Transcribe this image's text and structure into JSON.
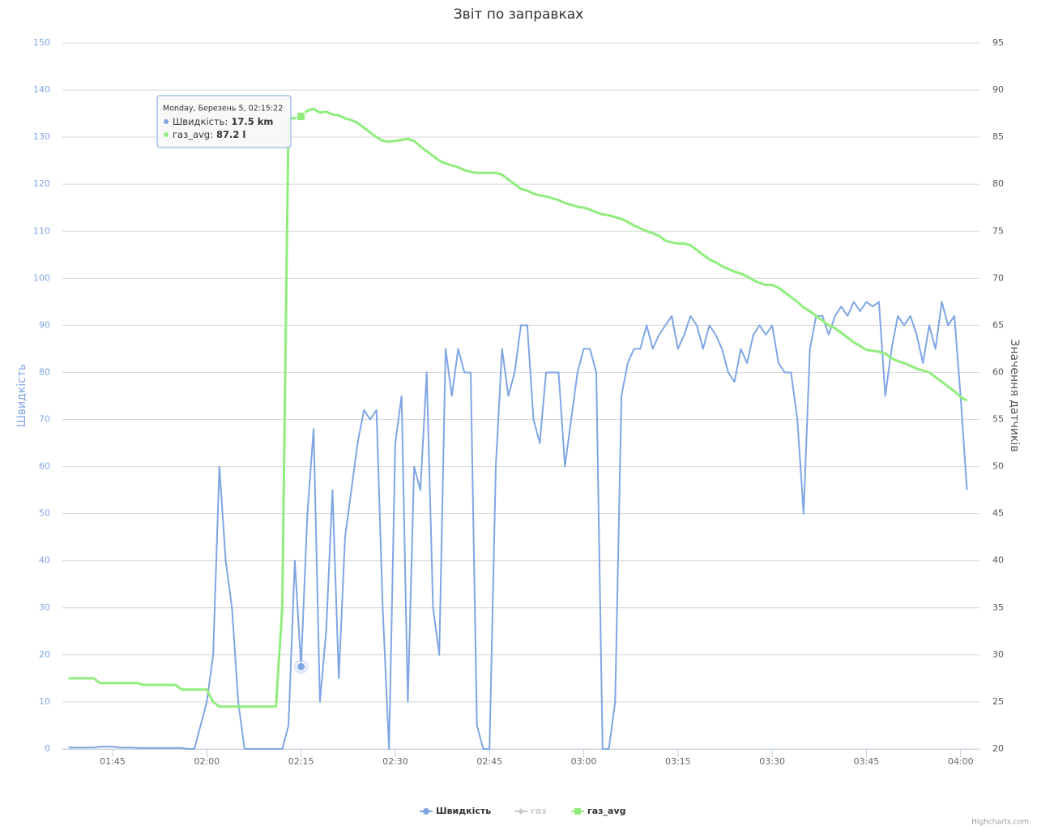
{
  "chart_data": {
    "type": "line",
    "title": "Звіт по заправках",
    "y_axis_title": "Швидкість",
    "y2_axis_title": "Значення датчиків",
    "x": [
      "01:38",
      "01:39",
      "01:40",
      "01:41",
      "01:42",
      "01:43",
      "01:44",
      "01:45",
      "01:46",
      "01:47",
      "01:48",
      "01:49",
      "01:50",
      "01:51",
      "01:52",
      "01:53",
      "01:54",
      "01:55",
      "01:56",
      "01:57",
      "01:58",
      "01:59",
      "02:00",
      "02:01",
      "02:02",
      "02:03",
      "02:04",
      "02:05",
      "02:06",
      "02:07",
      "02:08",
      "02:09",
      "02:10",
      "02:11",
      "02:12",
      "02:13",
      "02:14",
      "02:15",
      "02:16",
      "02:17",
      "02:18",
      "02:19",
      "02:20",
      "02:21",
      "02:22",
      "02:23",
      "02:24",
      "02:25",
      "02:26",
      "02:27",
      "02:28",
      "02:29",
      "02:30",
      "02:31",
      "02:32",
      "02:33",
      "02:34",
      "02:35",
      "02:36",
      "02:37",
      "02:38",
      "02:39",
      "02:40",
      "02:41",
      "02:42",
      "02:43",
      "02:44",
      "02:45",
      "02:46",
      "02:47",
      "02:48",
      "02:49",
      "02:50",
      "02:51",
      "02:52",
      "02:53",
      "02:54",
      "02:55",
      "02:56",
      "02:57",
      "02:58",
      "02:59",
      "03:00",
      "03:01",
      "03:02",
      "03:03",
      "03:04",
      "03:05",
      "03:06",
      "03:07",
      "03:08",
      "03:09",
      "03:10",
      "03:11",
      "03:12",
      "03:13",
      "03:14",
      "03:15",
      "03:16",
      "03:17",
      "03:18",
      "03:19",
      "03:20",
      "03:21",
      "03:22",
      "03:23",
      "03:24",
      "03:25",
      "03:26",
      "03:27",
      "03:28",
      "03:29",
      "03:30",
      "03:31",
      "03:32",
      "03:33",
      "03:34",
      "03:35",
      "03:36",
      "03:37",
      "03:38",
      "03:39",
      "03:40",
      "03:41",
      "03:42",
      "03:43",
      "03:44",
      "03:45",
      "03:46",
      "03:47",
      "03:48",
      "03:49",
      "03:50",
      "03:51",
      "03:52",
      "03:53",
      "03:54",
      "03:55",
      "03:56",
      "03:57",
      "03:58",
      "03:59",
      "04:00",
      "04:01"
    ],
    "xlim": [
      "01:37",
      "04:03"
    ],
    "xticks": [
      "01:45",
      "02:00",
      "02:15",
      "02:30",
      "02:45",
      "03:00",
      "03:15",
      "03:30",
      "03:45",
      "04:00"
    ],
    "ylim": [
      0,
      150
    ],
    "yticks": [
      0,
      10,
      20,
      30,
      40,
      50,
      60,
      70,
      80,
      90,
      100,
      110,
      120,
      130,
      140,
      150
    ],
    "y2lim": [
      20,
      95
    ],
    "y2ticks": [
      20,
      25,
      30,
      35,
      40,
      45,
      50,
      55,
      60,
      65,
      70,
      75,
      80,
      85,
      90,
      95
    ],
    "grid": true,
    "series": [
      {
        "name": "Швидкість",
        "color": "#7fa6e3",
        "marker": "circle",
        "values": [
          0.3,
          0.3,
          0.3,
          0.3,
          0.3,
          0.5,
          0.5,
          0.5,
          0.3,
          0.3,
          0.3,
          0.2,
          0.2,
          0.2,
          0.2,
          0.2,
          0.2,
          0.2,
          0.2,
          0,
          0,
          5,
          10,
          20,
          60,
          40,
          30,
          10,
          0,
          0,
          0,
          0,
          0,
          0,
          0,
          5,
          40,
          17.5,
          50,
          68,
          10,
          25,
          55,
          15,
          45,
          55,
          65,
          72,
          70,
          72,
          30,
          0,
          65,
          75,
          10,
          60,
          55,
          80,
          30,
          20,
          85,
          75,
          85,
          80,
          80,
          5,
          0,
          0,
          60,
          85,
          75,
          80,
          90,
          90,
          70,
          65,
          80,
          80,
          80,
          60,
          70,
          80,
          85,
          85,
          80,
          0,
          0,
          10,
          75,
          82,
          85,
          85,
          90,
          85,
          88,
          90,
          92,
          85,
          88,
          92,
          90,
          85,
          90,
          88,
          85,
          80,
          78,
          85,
          82,
          88,
          90,
          88,
          90,
          82,
          80,
          80,
          70,
          50,
          85,
          92,
          92,
          88,
          92,
          94,
          92,
          95,
          93,
          95,
          94,
          95,
          75,
          85,
          92,
          90,
          92,
          88,
          82,
          90,
          85,
          95,
          90,
          92,
          75,
          55
        ]
      },
      {
        "name": "газ",
        "visible": false,
        "marker": "diamond"
      },
      {
        "name": "газ_avg",
        "color": "#90ed7d",
        "axis": "y2",
        "marker": "square",
        "values": [
          27.5,
          27.5,
          27.5,
          27.5,
          27.5,
          27,
          27,
          27,
          27,
          27,
          27,
          27,
          26.8,
          26.8,
          26.8,
          26.8,
          26.8,
          26.8,
          26.3,
          26.3,
          26.3,
          26.3,
          26.3,
          25,
          24.5,
          24.5,
          24.5,
          24.5,
          24.5,
          24.5,
          24.5,
          24.5,
          24.5,
          24.5,
          35,
          87,
          87,
          87.2,
          87.8,
          88,
          87.6,
          87.7,
          87.4,
          87.3,
          87,
          86.8,
          86.5,
          86,
          85.5,
          85,
          84.6,
          84.5,
          84.6,
          84.7,
          84.8,
          84.6,
          84,
          83.5,
          83,
          82.5,
          82.2,
          82,
          81.8,
          81.5,
          81.3,
          81.2,
          81.2,
          81.2,
          81.2,
          81,
          80.5,
          80,
          79.5,
          79.3,
          79,
          78.8,
          78.7,
          78.5,
          78.3,
          78,
          77.8,
          77.6,
          77.5,
          77.3,
          77,
          76.8,
          76.7,
          76.5,
          76.3,
          76,
          75.6,
          75.3,
          75,
          74.8,
          74.5,
          74,
          73.8,
          73.7,
          73.7,
          73.5,
          73,
          72.5,
          72,
          71.7,
          71.3,
          71,
          70.7,
          70.5,
          70.2,
          69.8,
          69.5,
          69.3,
          69.3,
          69,
          68.5,
          68,
          67.5,
          66.9,
          66.5,
          66,
          65.5,
          65,
          64.7,
          64.2,
          63.7,
          63.2,
          62.8,
          62.4,
          62.3,
          62.2,
          62,
          61.5,
          61.2,
          61,
          60.7,
          60.4,
          60.2,
          60,
          59.5,
          59,
          58.5,
          58,
          57.4,
          57
        ]
      }
    ],
    "tooltip": {
      "index": 37,
      "header": "Monday, Березень 5, 02:15:22",
      "rows": [
        {
          "label": "Швидкість:",
          "value": "17.5 km"
        },
        {
          "label": "газ_avg:",
          "value": "87.2 l"
        }
      ]
    },
    "credits": "Highcharts.com"
  }
}
